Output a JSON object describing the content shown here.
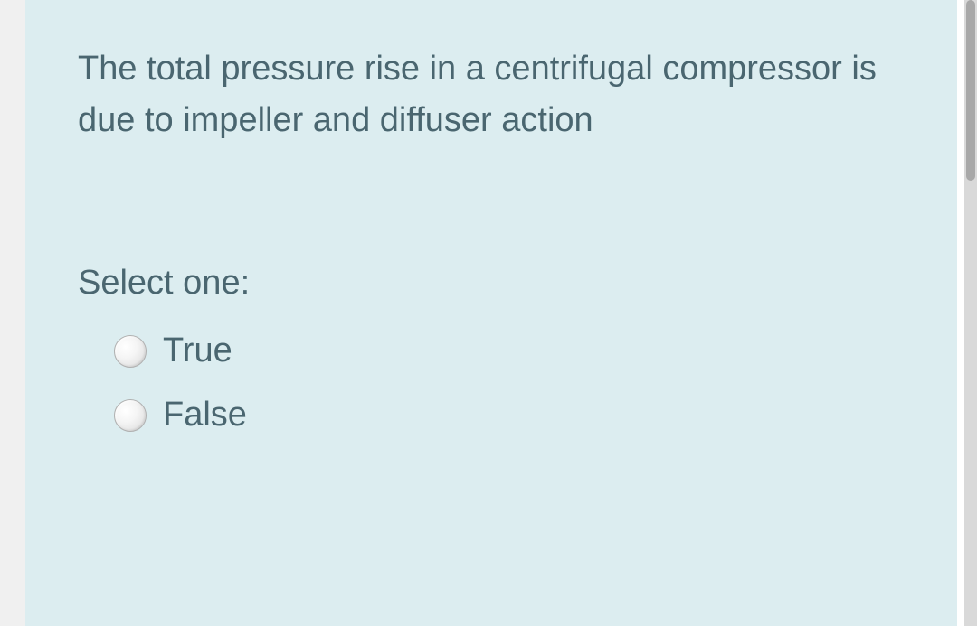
{
  "question": {
    "text": "The total  pressure rise in a centrifugal compressor is due to impeller and diffuser action",
    "select_label": "Select one:",
    "options": [
      {
        "label": "True"
      },
      {
        "label": "False"
      }
    ]
  },
  "colors": {
    "card_background": "#dcedf0",
    "text_color": "#4a6670",
    "page_background": "#f0f0f0",
    "scrollbar_track": "#d9d9d9",
    "scrollbar_thumb": "#a8a8a8"
  },
  "typography": {
    "font_size": 38,
    "line_height": 1.5,
    "font_family": "Arial"
  }
}
